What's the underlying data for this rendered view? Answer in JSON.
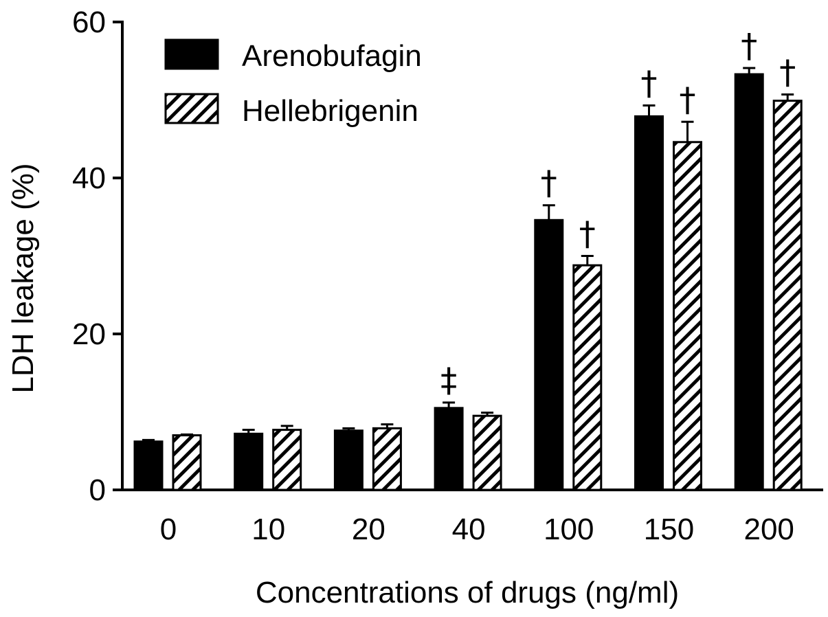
{
  "chart_data": {
    "type": "bar",
    "title": "",
    "xlabel": "Concentrations of drugs (ng/ml)",
    "ylabel": "LDH leakage (%)",
    "ylim": [
      0,
      60
    ],
    "yticks": [
      0,
      20,
      40,
      60
    ],
    "grid": false,
    "legend_placement": "top-left",
    "categories": [
      "0",
      "10",
      "20",
      "40",
      "100",
      "150",
      "200"
    ],
    "series": [
      {
        "name": "Arenobufagin",
        "fill": "solid",
        "color": "#000000",
        "values": [
          6.2,
          7.2,
          7.6,
          10.5,
          34.6,
          47.9,
          53.3
        ],
        "errors": [
          0.2,
          0.5,
          0.3,
          0.7,
          1.9,
          1.4,
          0.8
        ],
        "annotations": [
          "",
          "",
          "",
          "‡",
          "†",
          "†",
          "†"
        ]
      },
      {
        "name": "Hellebrigenin",
        "fill": "hatched",
        "color": "#000000",
        "values": [
          7.0,
          7.7,
          7.9,
          9.5,
          28.8,
          44.6,
          49.9
        ],
        "errors": [
          0.1,
          0.5,
          0.5,
          0.4,
          1.2,
          2.6,
          0.8
        ],
        "annotations": [
          "",
          "",
          "",
          "",
          "†",
          "†",
          "†"
        ]
      }
    ]
  }
}
